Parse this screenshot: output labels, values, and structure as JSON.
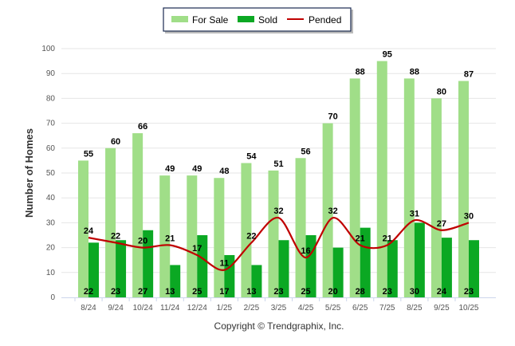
{
  "chart_data": {
    "type": "bar",
    "title": "",
    "xlabel": "",
    "ylabel": "Number of Homes",
    "ylim": [
      0,
      100
    ],
    "yticks": [
      0,
      10,
      20,
      30,
      40,
      50,
      60,
      70,
      80,
      90,
      100
    ],
    "grid": true,
    "legend_position": "top-center",
    "categories": [
      "8/24",
      "9/24",
      "10/24",
      "11/24",
      "12/24",
      "1/25",
      "2/25",
      "3/25",
      "4/25",
      "5/25",
      "6/25",
      "7/25",
      "8/25",
      "9/25",
      "10/25"
    ],
    "series": [
      {
        "name": "For Sale",
        "type": "bar",
        "color": "#a0de88",
        "values": [
          55,
          60,
          66,
          49,
          49,
          48,
          54,
          51,
          56,
          70,
          88,
          95,
          88,
          80,
          87
        ]
      },
      {
        "name": "Sold",
        "type": "bar",
        "color": "#0ba823",
        "values": [
          22,
          23,
          27,
          13,
          25,
          17,
          13,
          23,
          25,
          20,
          28,
          23,
          30,
          24,
          23
        ]
      },
      {
        "name": "Pended",
        "type": "line",
        "color": "#c00000",
        "values": [
          24,
          22,
          20,
          21,
          17,
          11,
          22,
          32,
          16,
          32,
          21,
          21,
          31,
          27,
          30
        ]
      }
    ]
  },
  "footer": {
    "copyright": "Copyright © Trendgraphix, Inc."
  }
}
